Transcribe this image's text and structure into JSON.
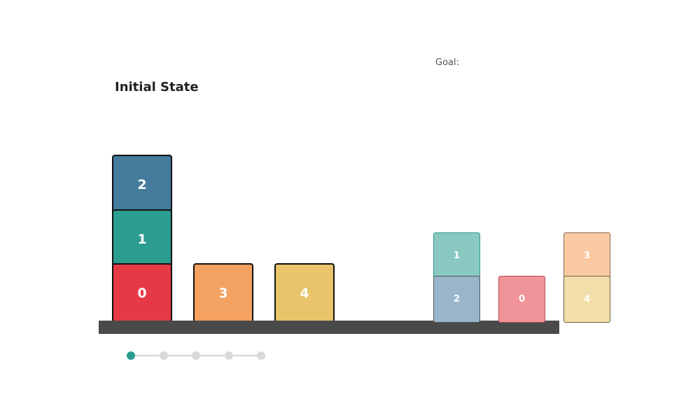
{
  "title": "Initial State",
  "goal_label": "Goal:",
  "colors": {
    "block_0": "#e63946",
    "block_1": "#2a9d8f",
    "block_2": "#457b9d",
    "block_3": "#f4a261",
    "block_4": "#e9c46a",
    "table": "#4a4a4a",
    "dot_active": "#2a9d8f",
    "dot_inactive": "#d9d9d9"
  },
  "initial_state": {
    "stacks": [
      [
        "0",
        "1",
        "2"
      ],
      [
        "3"
      ],
      [
        "4"
      ]
    ]
  },
  "goal_state": {
    "stacks": [
      [
        "2",
        "1"
      ],
      [
        "0"
      ],
      [
        "4",
        "3"
      ]
    ]
  },
  "progress": {
    "total_steps": 5,
    "current_step": 1
  }
}
